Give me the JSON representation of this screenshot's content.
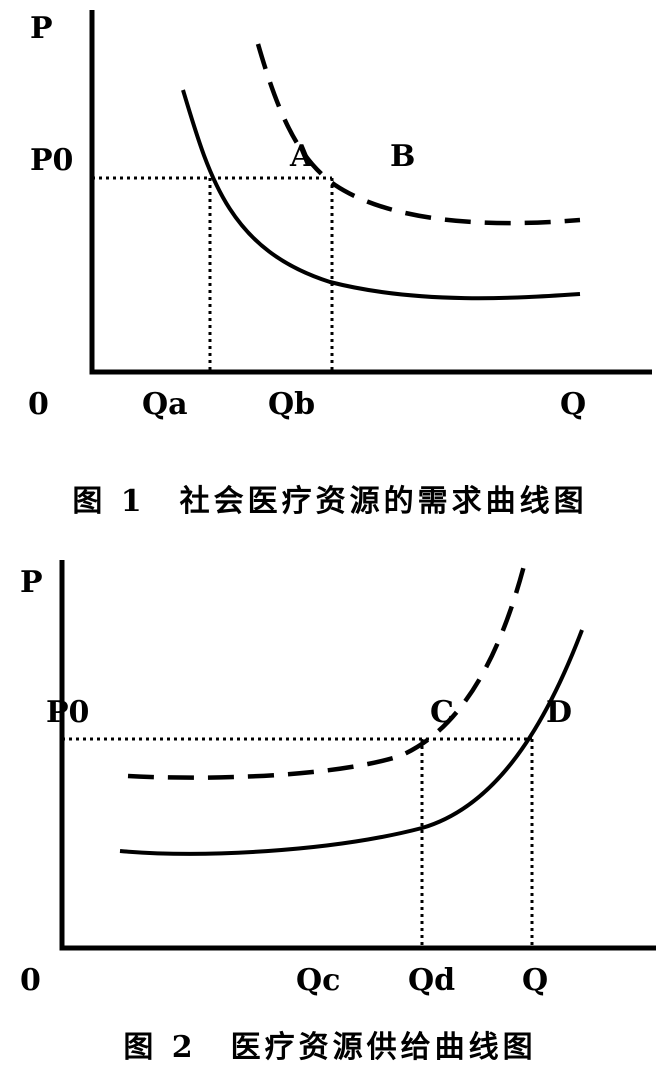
{
  "figure1": {
    "labels": {
      "y_axis": "P",
      "x_axis": "Q",
      "origin": "0",
      "price_level": "P0",
      "point_a": "A",
      "point_b": "B",
      "qty_a": "Qa",
      "qty_b": "Qb"
    },
    "caption": "图 1　社会医疗资源的需求曲线图"
  },
  "figure2": {
    "labels": {
      "y_axis": "P",
      "x_axis": "Q",
      "origin": "0",
      "price_level": "P0",
      "point_c": "C",
      "point_d": "D",
      "qty_c": "Qc",
      "qty_d": "Qd"
    },
    "caption": "图 2　医疗资源供给曲线图"
  }
}
